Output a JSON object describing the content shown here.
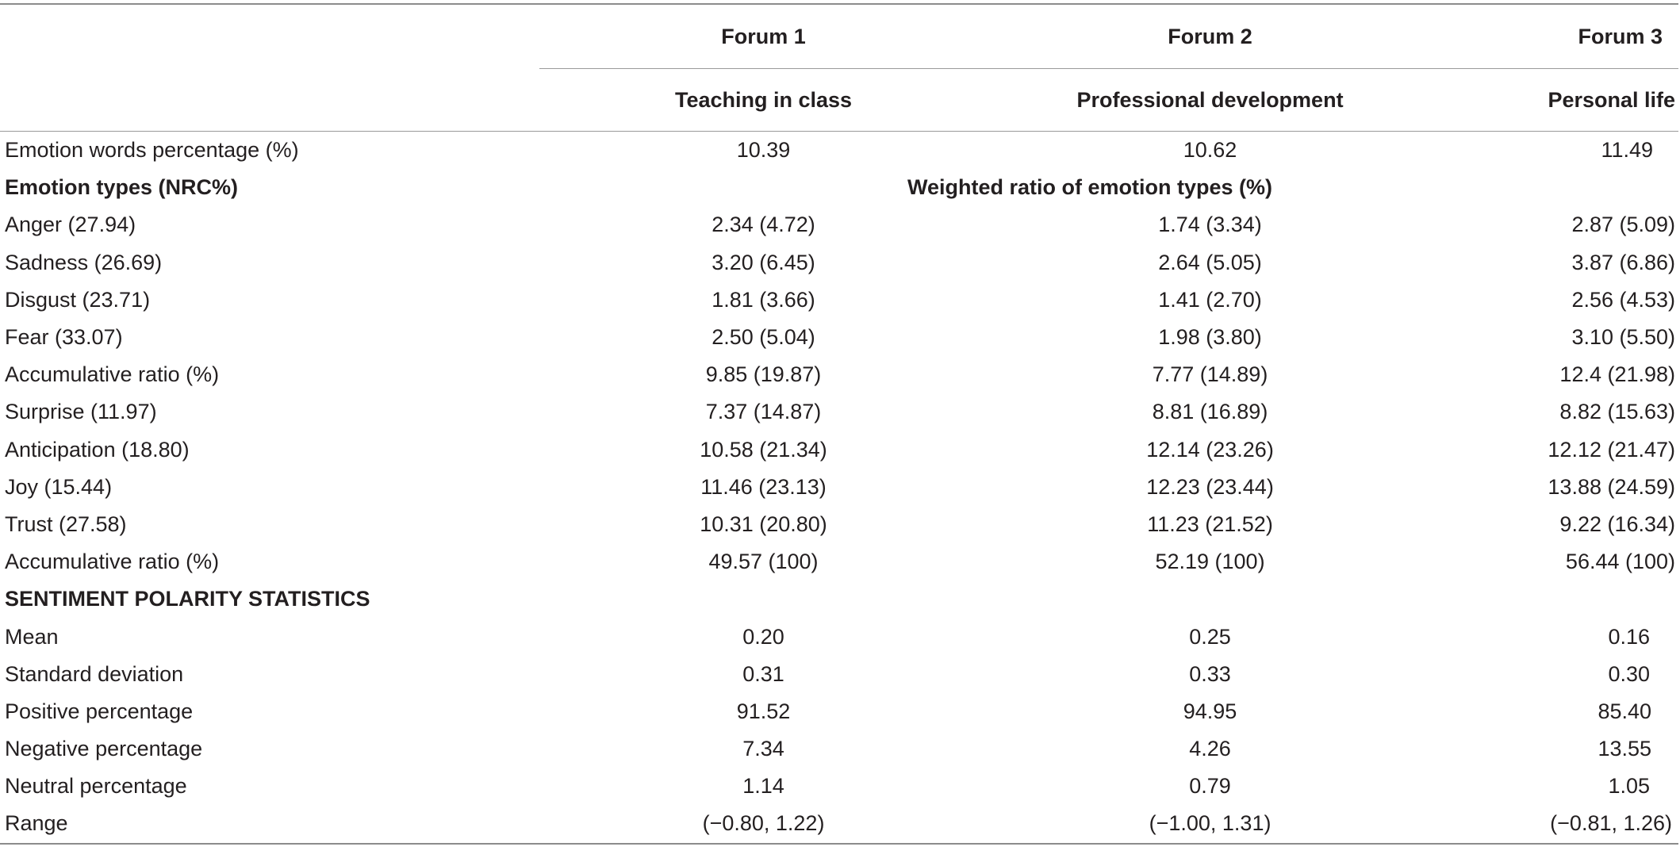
{
  "header": {
    "forum_labels": [
      "Forum 1",
      "Forum 2",
      "Forum 3"
    ],
    "forum_topics": [
      "Teaching in class",
      "Professional development",
      "Personal life"
    ]
  },
  "emotion_words_row": {
    "label": "Emotion words percentage (%)",
    "values": [
      "10.39",
      "10.62",
      "11.49"
    ]
  },
  "emotion_types_header": {
    "label": "Emotion types (NRC%)",
    "span_label": "Weighted ratio of emotion types (%)"
  },
  "emotion_rows": [
    {
      "label": "Anger (27.94)",
      "values": [
        "2.34 (4.72)",
        "1.74 (3.34)",
        "2.87 (5.09)"
      ]
    },
    {
      "label": "Sadness (26.69)",
      "values": [
        "3.20 (6.45)",
        "2.64 (5.05)",
        "3.87 (6.86)"
      ]
    },
    {
      "label": "Disgust (23.71)",
      "values": [
        "1.81 (3.66)",
        "1.41 (2.70)",
        "2.56 (4.53)"
      ]
    },
    {
      "label": "Fear (33.07)",
      "values": [
        "2.50 (5.04)",
        "1.98 (3.80)",
        "3.10 (5.50)"
      ]
    },
    {
      "label": "Accumulative ratio (%)",
      "values": [
        "9.85 (19.87)",
        "7.77 (14.89)",
        "12.4 (21.98)"
      ]
    },
    {
      "label": "Surprise (11.97)",
      "values": [
        "7.37 (14.87)",
        "8.81 (16.89)",
        "8.82 (15.63)"
      ]
    },
    {
      "label": "Anticipation (18.80)",
      "values": [
        "10.58 (21.34)",
        "12.14 (23.26)",
        "12.12 (21.47)"
      ]
    },
    {
      "label": "Joy (15.44)",
      "values": [
        "11.46 (23.13)",
        "12.23 (23.44)",
        "13.88 (24.59)"
      ]
    },
    {
      "label": "Trust (27.58)",
      "values": [
        "10.31 (20.80)",
        "11.23 (21.52)",
        "9.22 (16.34)"
      ]
    },
    {
      "label": "Accumulative ratio (%)",
      "values": [
        "49.57 (100)",
        "52.19 (100)",
        "56.44 (100)"
      ]
    }
  ],
  "sentiment_header": {
    "label": "SENTIMENT POLARITY STATISTICS"
  },
  "sentiment_rows": [
    {
      "label": "Mean",
      "values": [
        "0.20",
        "0.25",
        "0.16"
      ]
    },
    {
      "label": "Standard deviation",
      "values": [
        "0.31",
        "0.33",
        "0.30"
      ]
    },
    {
      "label": "Positive percentage",
      "values": [
        "91.52",
        "94.95",
        "85.40"
      ]
    },
    {
      "label": "Negative percentage",
      "values": [
        "7.34",
        "4.26",
        "13.55"
      ]
    },
    {
      "label": "Neutral percentage",
      "values": [
        "1.14",
        "0.79",
        "1.05"
      ]
    },
    {
      "label": "Range",
      "values": [
        "(−0.80, 1.22)",
        "(−1.00, 1.31)",
        "(−0.81, 1.26)"
      ]
    }
  ]
}
